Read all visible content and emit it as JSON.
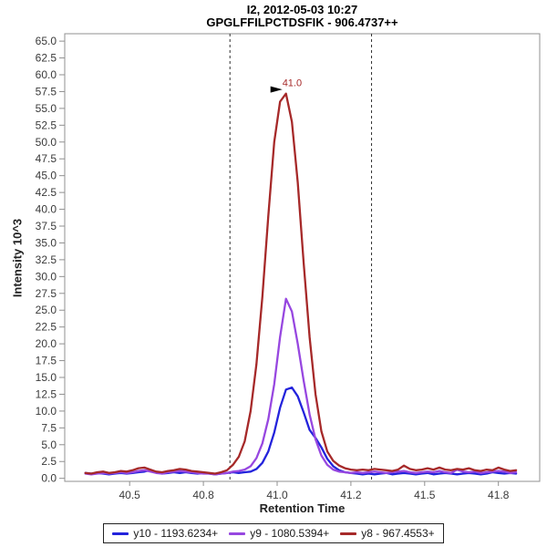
{
  "header": {
    "line1": "I2, 2012-05-03 10:27",
    "line2": "GPGLFFILPCTDSFIK - 906.4737++"
  },
  "axes": {
    "x_label": "Retention Time",
    "y_label": "Intensity 10^3"
  },
  "annotation": {
    "label": "41.0",
    "rt": 41.03,
    "value": 57.2,
    "color": "#A62929",
    "arrow_color": "#000000"
  },
  "peak_boundaries": {
    "left_rt": 40.84,
    "right_rt": 41.32,
    "color": "#303030",
    "style": "dashed"
  },
  "colors": {
    "frame": "#909090",
    "tick": "#909090",
    "tick_label": "#3a3a3a",
    "series_blue": "#2323DC",
    "series_purple": "#9747E0",
    "series_brown": "#A62929"
  },
  "chart_data": {
    "type": "line",
    "title": "I2, 2012-05-03 10:27 / GPGLFFILPCTDSFIK - 906.4737++",
    "xlabel": "Retention Time",
    "ylabel": "Intensity 10^3",
    "xlim": [
      40.28,
      41.89
    ],
    "ylim": [
      -0.45,
      66.1
    ],
    "grid": false,
    "legend_position": "bottom-center",
    "x_ticks": {
      "values": [
        40.5,
        40.75,
        41.0,
        41.25,
        41.5,
        41.75
      ],
      "labels": [
        "40.5",
        "40.8",
        "41.0",
        "41.2",
        "41.5",
        "41.8"
      ]
    },
    "y_ticks": {
      "start": 0,
      "step": 2.5,
      "end": 65,
      "decimals": 1
    },
    "x": [
      40.35,
      40.37,
      40.39,
      40.41,
      40.43,
      40.45,
      40.47,
      40.49,
      40.51,
      40.53,
      40.55,
      40.57,
      40.59,
      40.61,
      40.63,
      40.65,
      40.67,
      40.69,
      40.71,
      40.73,
      40.75,
      40.77,
      40.79,
      40.81,
      40.83,
      40.85,
      40.87,
      40.89,
      40.91,
      40.93,
      40.95,
      40.97,
      40.99,
      41.01,
      41.03,
      41.05,
      41.07,
      41.09,
      41.11,
      41.13,
      41.15,
      41.17,
      41.19,
      41.21,
      41.23,
      41.25,
      41.27,
      41.29,
      41.31,
      41.33,
      41.35,
      41.37,
      41.39,
      41.41,
      41.43,
      41.45,
      41.47,
      41.49,
      41.51,
      41.53,
      41.55,
      41.57,
      41.59,
      41.61,
      41.63,
      41.65,
      41.67,
      41.69,
      41.71,
      41.73,
      41.75,
      41.77,
      41.79,
      41.81
    ],
    "series": [
      {
        "name": "y10 - 1193.6234+",
        "color": "#2323DC",
        "values": [
          0.8,
          0.7,
          0.8,
          0.7,
          0.6,
          0.7,
          0.8,
          0.7,
          0.8,
          0.9,
          1.0,
          1.2,
          0.9,
          0.7,
          0.8,
          0.9,
          0.8,
          0.9,
          0.8,
          0.7,
          0.8,
          0.7,
          0.6,
          0.7,
          0.8,
          0.9,
          0.8,
          0.9,
          1.0,
          1.4,
          2.3,
          4.0,
          6.8,
          10.5,
          13.2,
          13.5,
          12.2,
          9.8,
          7.2,
          6.0,
          4.6,
          2.9,
          1.8,
          1.2,
          0.9,
          0.8,
          0.7,
          0.6,
          0.7,
          0.6,
          0.7,
          0.8,
          0.6,
          0.7,
          0.8,
          0.7,
          0.6,
          0.7,
          0.8,
          0.6,
          0.7,
          0.8,
          0.7,
          0.6,
          0.7,
          0.8,
          0.7,
          0.6,
          0.7,
          0.9,
          0.8,
          0.7,
          0.8,
          0.7
        ]
      },
      {
        "name": "y9 - 1080.5394+",
        "color": "#9747E0",
        "values": [
          0.7,
          0.6,
          0.7,
          0.8,
          0.7,
          0.8,
          0.9,
          0.8,
          0.9,
          1.1,
          1.2,
          1.0,
          0.8,
          0.7,
          0.9,
          1.0,
          1.1,
          1.0,
          0.9,
          0.8,
          0.7,
          0.7,
          0.6,
          0.7,
          0.8,
          1.0,
          1.1,
          1.3,
          1.8,
          3.0,
          5.2,
          8.8,
          14.0,
          21.0,
          26.7,
          24.8,
          20.0,
          14.5,
          9.5,
          5.8,
          3.4,
          2.0,
          1.3,
          1.0,
          0.9,
          0.8,
          0.9,
          0.8,
          0.9,
          1.0,
          0.9,
          0.8,
          0.9,
          1.0,
          1.1,
          0.9,
          0.8,
          0.9,
          1.0,
          0.9,
          1.1,
          0.9,
          0.8,
          1.3,
          1.0,
          0.9,
          1.0,
          0.8,
          0.9,
          1.0,
          1.1,
          1.0,
          0.8,
          0.9
        ]
      },
      {
        "name": "y8 - 967.4553+",
        "color": "#A62929",
        "values": [
          0.8,
          0.7,
          0.9,
          1.0,
          0.8,
          0.9,
          1.1,
          1.0,
          1.2,
          1.5,
          1.6,
          1.3,
          1.0,
          0.9,
          1.1,
          1.2,
          1.4,
          1.3,
          1.1,
          1.0,
          0.9,
          0.8,
          0.7,
          0.9,
          1.2,
          2.0,
          3.2,
          5.5,
          10.0,
          17.0,
          27.0,
          39.0,
          50.0,
          56.0,
          57.2,
          53.0,
          44.0,
          32.0,
          21.0,
          12.5,
          7.0,
          4.0,
          2.6,
          1.9,
          1.5,
          1.3,
          1.2,
          1.3,
          1.2,
          1.4,
          1.3,
          1.2,
          1.1,
          1.3,
          1.9,
          1.4,
          1.2,
          1.3,
          1.5,
          1.3,
          1.6,
          1.3,
          1.2,
          1.4,
          1.3,
          1.5,
          1.2,
          1.1,
          1.3,
          1.2,
          1.6,
          1.3,
          1.1,
          1.2
        ]
      }
    ]
  },
  "legend": {
    "items": [
      {
        "label": "y10 - 1193.6234+",
        "color": "#2323DC"
      },
      {
        "label": "y9 - 1080.5394+",
        "color": "#9747E0"
      },
      {
        "label": "y8 - 967.4553+",
        "color": "#A62929"
      }
    ]
  }
}
